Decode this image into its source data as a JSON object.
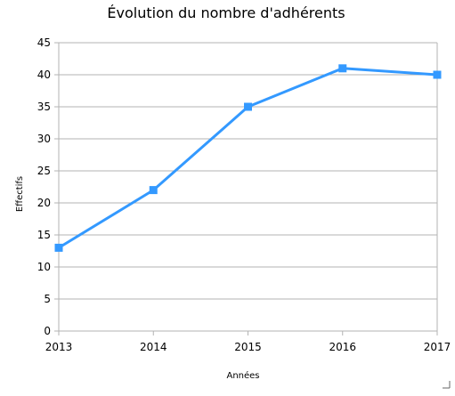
{
  "chart_data": {
    "type": "line",
    "title": "Évolution du nombre d'adhérents",
    "xlabel": "Années",
    "ylabel": "Effectifs",
    "x": [
      "2013",
      "2014",
      "2015",
      "2016",
      "2017"
    ],
    "series": [
      {
        "values": [
          13,
          22,
          35,
          41,
          40
        ],
        "color": "#3399ff",
        "marker": "square"
      }
    ],
    "ylim": [
      0,
      45
    ],
    "yticks": [
      "0",
      "5",
      "10",
      "15",
      "20",
      "25",
      "30",
      "35",
      "40",
      "45"
    ],
    "grid": true,
    "legend": "none"
  }
}
